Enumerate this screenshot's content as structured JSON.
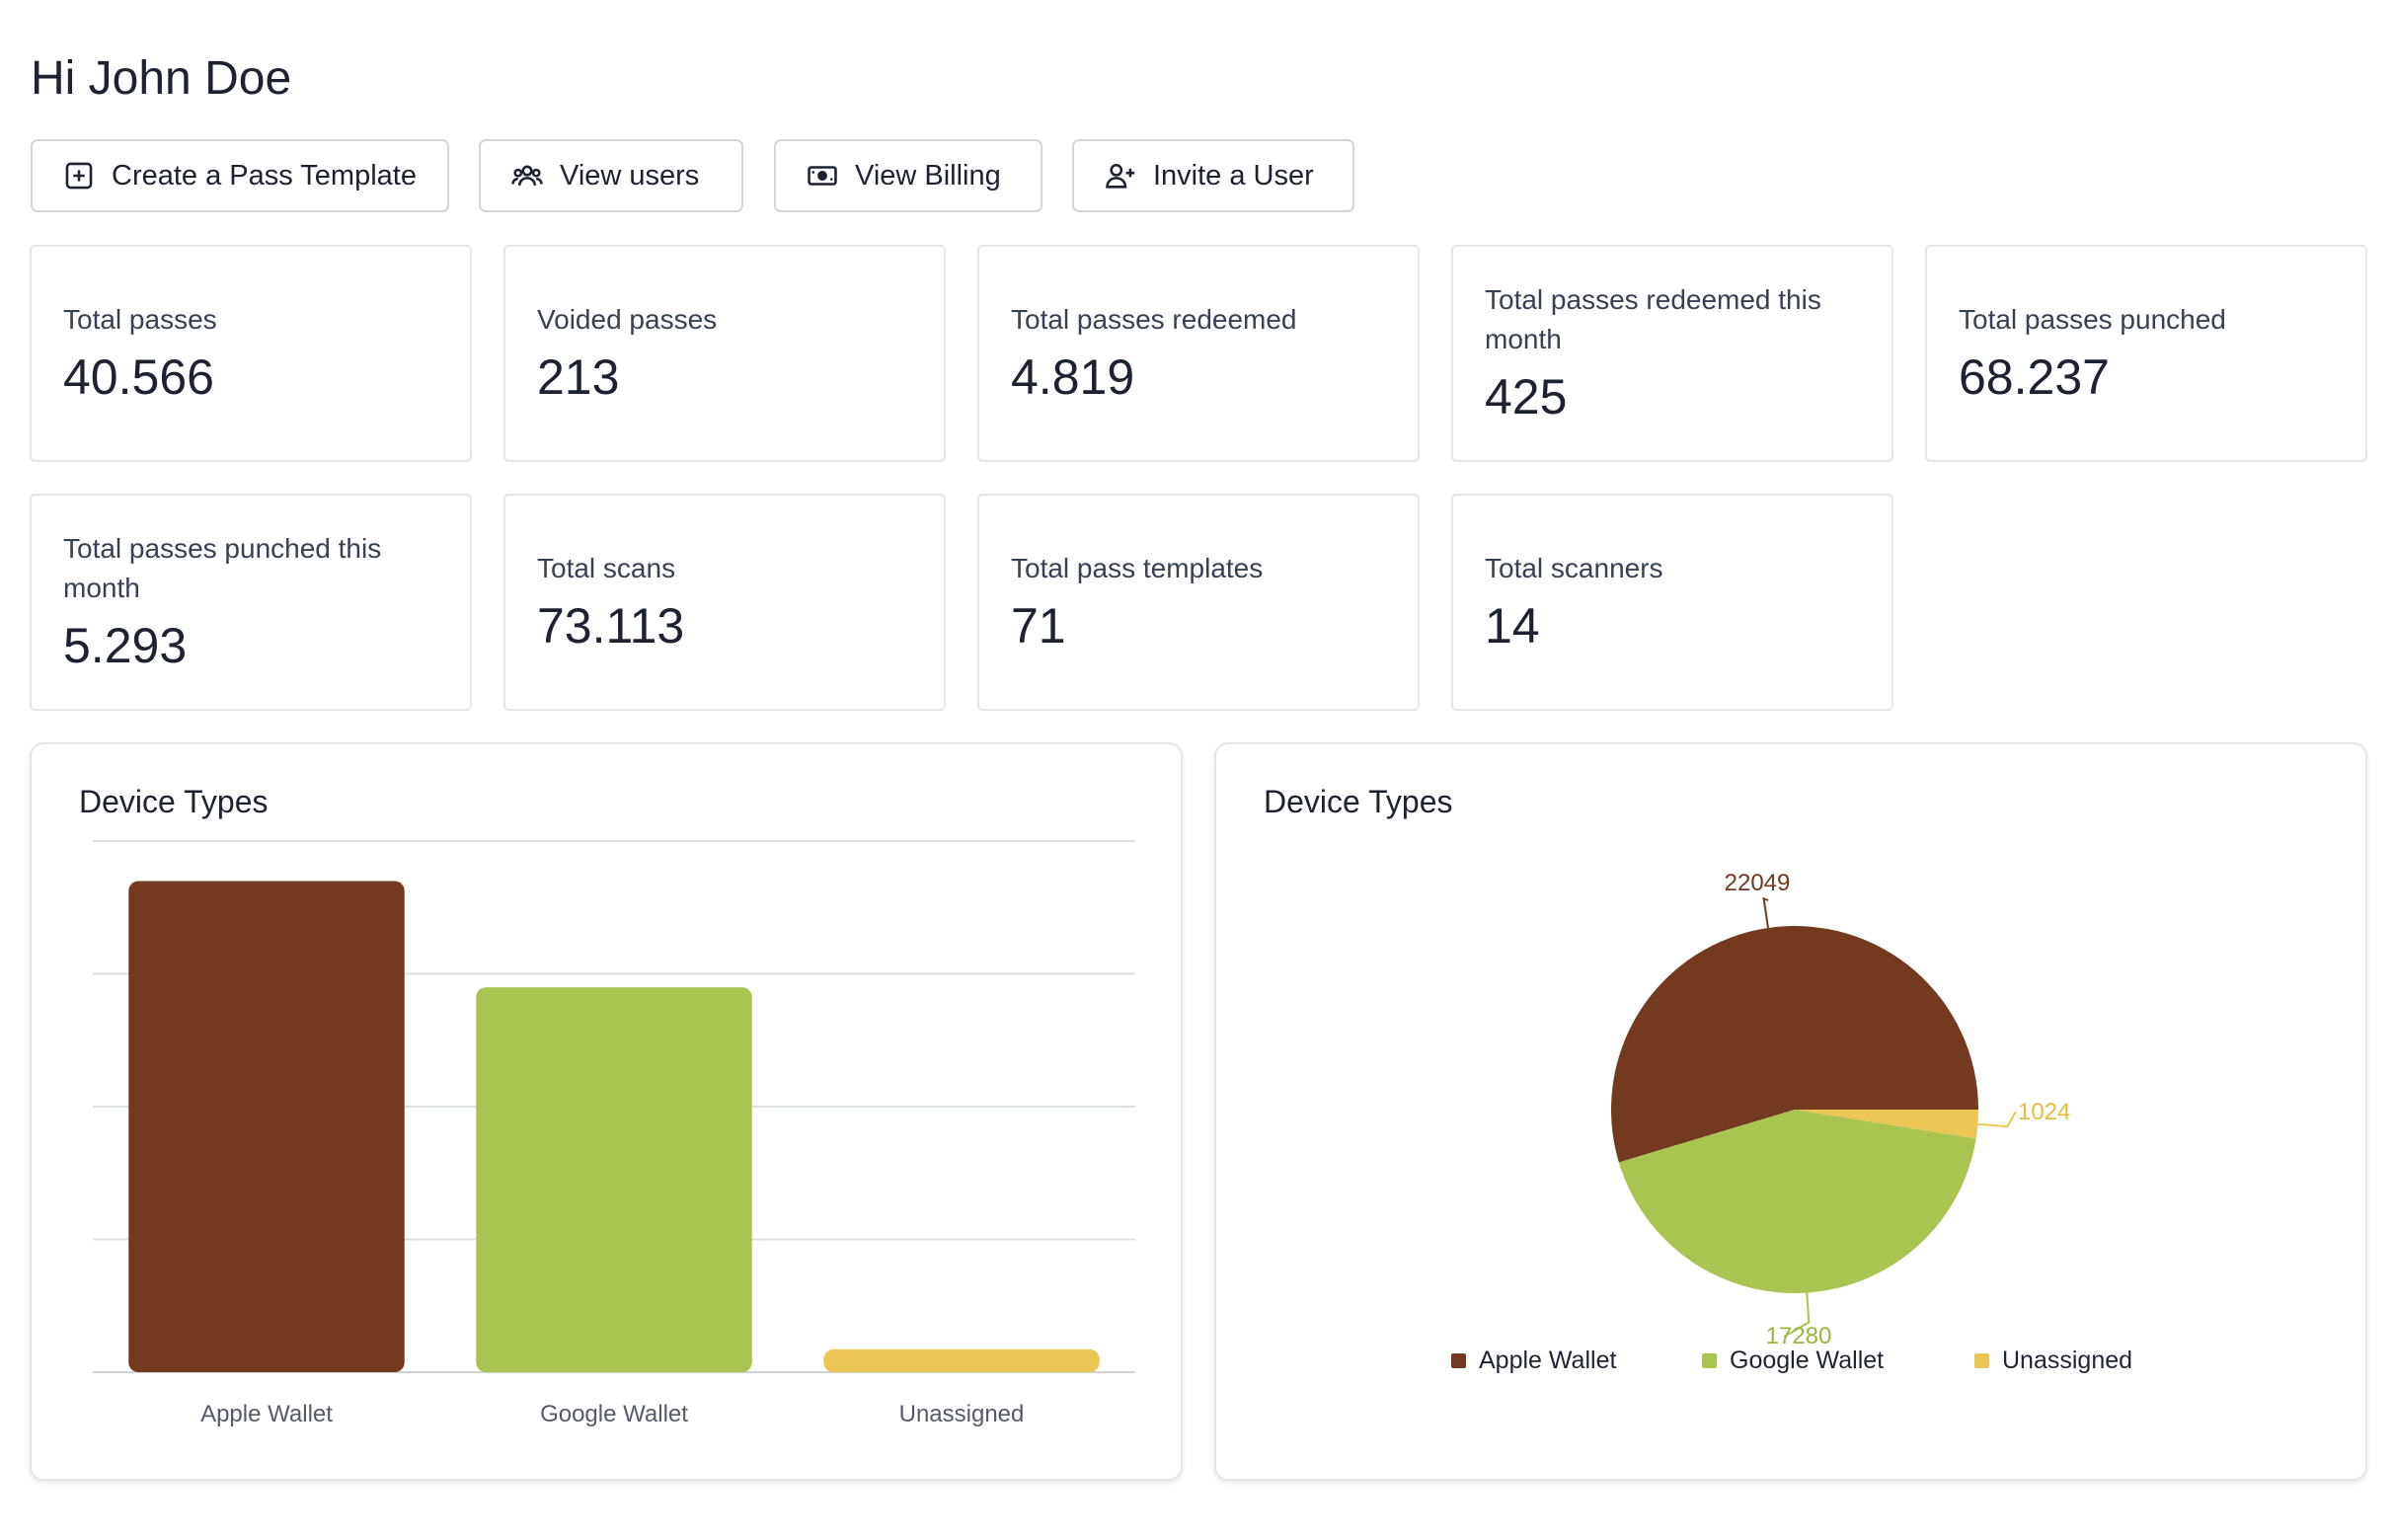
{
  "greeting": "Hi John Doe",
  "actions": [
    {
      "label": "Create a Pass Template",
      "icon": "plus-square-icon"
    },
    {
      "label": "View users",
      "icon": "users-icon"
    },
    {
      "label": "View Billing",
      "icon": "banknote-icon"
    },
    {
      "label": "Invite a User",
      "icon": "user-plus-icon"
    }
  ],
  "stats": [
    {
      "label": "Total passes",
      "value": "40.566"
    },
    {
      "label": "Voided passes",
      "value": "213"
    },
    {
      "label": "Total passes redeemed",
      "value": "4.819"
    },
    {
      "label": "Total passes redeemed this month",
      "value": "425"
    },
    {
      "label": "Total passes punched",
      "value": "68.237"
    },
    {
      "label": "Total passes punched this month",
      "value": "5.293"
    },
    {
      "label": "Total scans",
      "value": "73.113"
    },
    {
      "label": "Total pass templates",
      "value": "71"
    },
    {
      "label": "Total scanners",
      "value": "14"
    }
  ],
  "charts": {
    "bar": {
      "title": "Device Types"
    },
    "pie": {
      "title": "Device Types"
    }
  },
  "chart_data": [
    {
      "type": "bar",
      "title": "Device Types",
      "categories": [
        "Apple Wallet",
        "Google Wallet",
        "Unassigned"
      ],
      "values": [
        22049,
        17280,
        1024
      ],
      "colors": [
        "#733a20",
        "#aac452",
        "#ecc654"
      ],
      "grid": true
    },
    {
      "type": "pie",
      "title": "Device Types",
      "categories": [
        "Apple Wallet",
        "Google Wallet",
        "Unassigned"
      ],
      "values": [
        22049,
        17280,
        1024
      ],
      "labels": [
        "22049",
        "17280",
        "1024"
      ],
      "colors": [
        "#733a20",
        "#aac452",
        "#ecc654"
      ],
      "legend": "bottom"
    }
  ]
}
